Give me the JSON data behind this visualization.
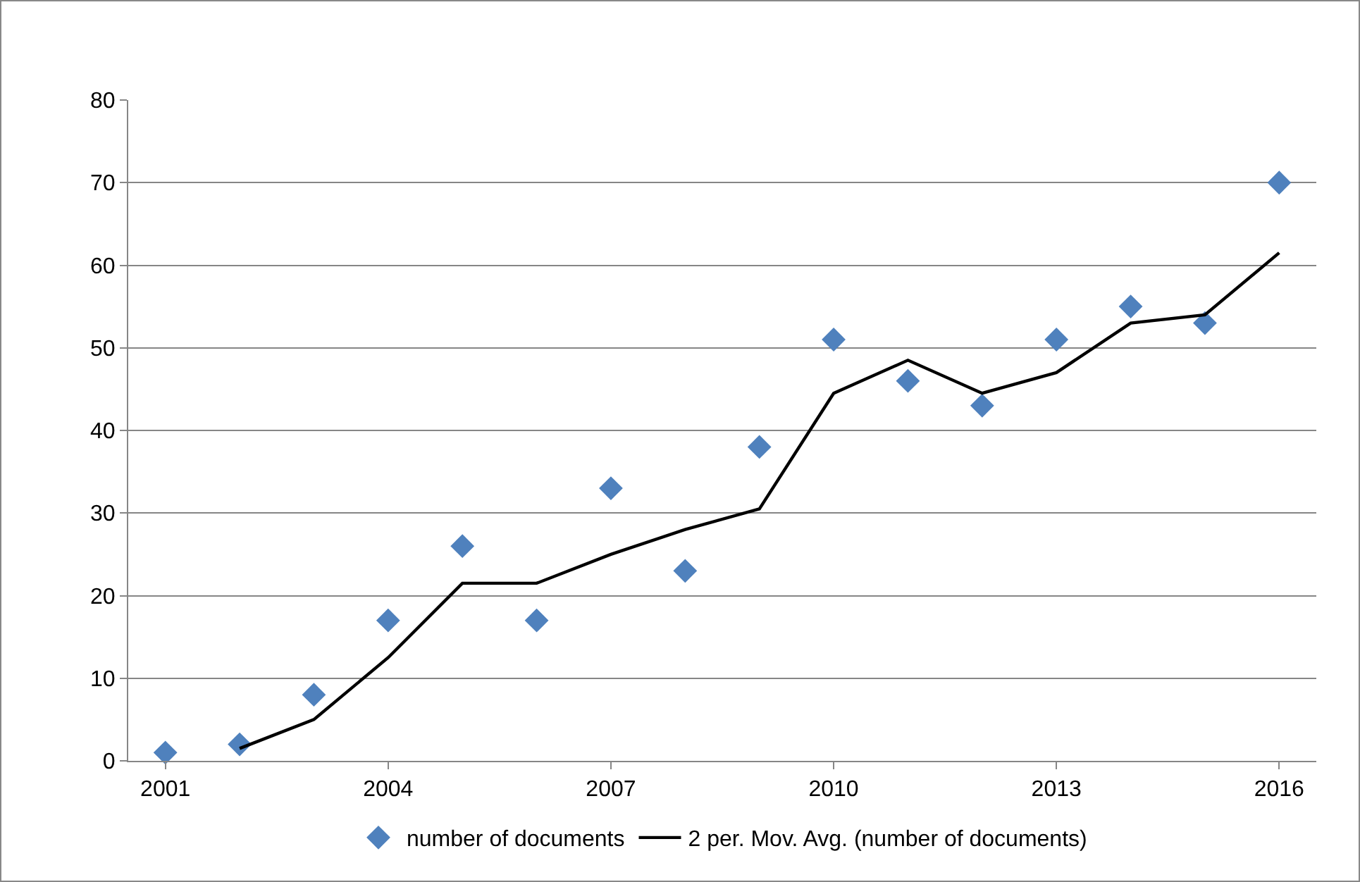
{
  "chart_data": {
    "type": "scatter",
    "x": [
      2001,
      2002,
      2003,
      2004,
      2005,
      2006,
      2007,
      2008,
      2009,
      2010,
      2011,
      2012,
      2013,
      2014,
      2015,
      2016
    ],
    "series": [
      {
        "name": "number of documents",
        "color": "#4f81bd",
        "marker": "diamond",
        "values": [
          1,
          2,
          8,
          17,
          26,
          17,
          33,
          23,
          38,
          51,
          46,
          43,
          51,
          55,
          53,
          70
        ]
      },
      {
        "name": "2 per. Mov. Avg. (number of documents)",
        "type": "line",
        "color": "#000000",
        "marker": "none",
        "line_style": "solid",
        "values": [
          null,
          1.5,
          5,
          12.5,
          21.5,
          21.5,
          25,
          28,
          30.5,
          44.5,
          48.5,
          44.5,
          47,
          53,
          54,
          61.5
        ]
      }
    ],
    "xlim": [
      2000.5,
      2016.5
    ],
    "xticks": [
      2001,
      2004,
      2007,
      2010,
      2013,
      2016
    ],
    "ylim": [
      0,
      80
    ],
    "yticks": [
      0,
      10,
      20,
      30,
      40,
      50,
      60,
      70,
      80
    ],
    "grid": "y",
    "legend": "bottom"
  }
}
